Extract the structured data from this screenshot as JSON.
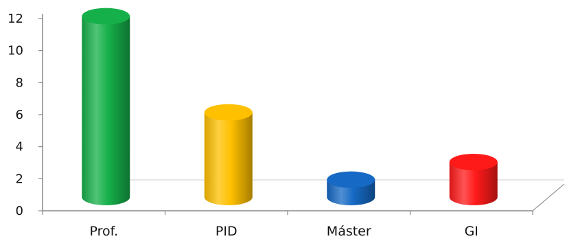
{
  "chart_data": {
    "type": "bar",
    "style": "3d-cylinder",
    "categories": [
      "Prof.",
      "PID",
      "Máster",
      "GI"
    ],
    "values": [
      11.5,
      5.5,
      1.3,
      2.4
    ],
    "ylim": [
      0,
      12
    ],
    "yticks": [
      "0",
      "2",
      "4",
      "6",
      "8",
      "10",
      "12"
    ],
    "grid": false,
    "legend": "none",
    "title": "",
    "xlabel": "",
    "ylabel": "",
    "colors": [
      "#16b04a",
      "#ffc000",
      "#1669c4",
      "#ff1a1a"
    ]
  }
}
